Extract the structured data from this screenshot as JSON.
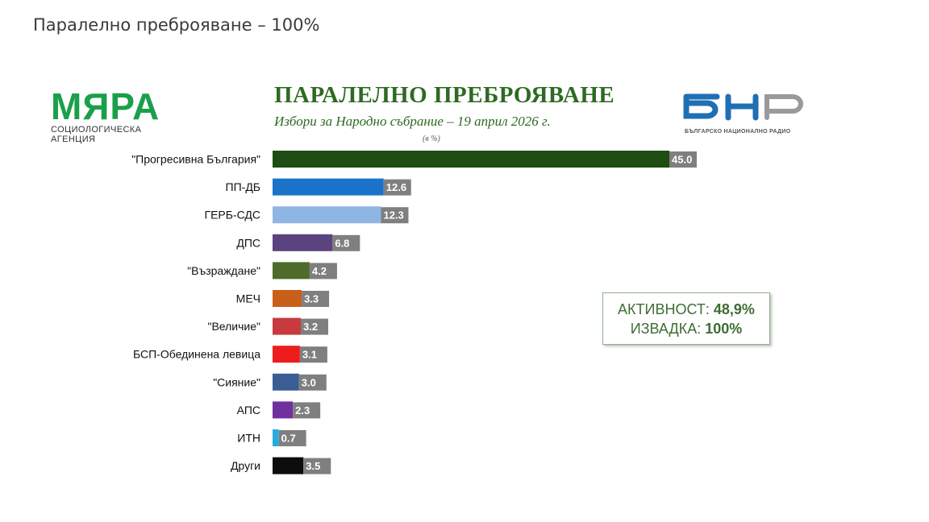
{
  "page": {
    "heading": "Паралелно преброяване – 100%"
  },
  "logos": {
    "left_mark": "МЯРА",
    "left_sub": "СОЦИОЛОГИЧЕСКА АГЕНЦИЯ",
    "right_mark": "БНР",
    "right_sub": "БЪЛГАРСКО НАЦИОНАЛНО РАДИО"
  },
  "info": {
    "turnout_label": "АКТИВНОСТ:",
    "turnout_value": "48,9%",
    "sample_label": "ИЗВАДКА:",
    "sample_value": "100%"
  },
  "chart_data": {
    "type": "bar",
    "orientation": "horizontal",
    "title": "ПАРАЛЕЛНО ПРЕБРОЯВАНЕ",
    "subtitle": "Избори за Народно събрание – 19 април 2026 г.",
    "unit": "(в %)",
    "categories": [
      "\"Прогресивна България\"",
      "ПП-ДБ",
      "ГЕРБ-СДС",
      "ДПС",
      "\"Възраждане\"",
      "МЕЧ",
      "\"Величие\"",
      "БСП-Обединена левица",
      "\"Сияние\"",
      "АПС",
      "ИТН",
      "Други"
    ],
    "values": [
      45.0,
      12.6,
      12.3,
      6.8,
      4.2,
      3.3,
      3.2,
      3.1,
      3.0,
      2.3,
      0.7,
      3.5
    ],
    "colors": [
      "#1d4d12",
      "#1a73c8",
      "#8fb5e3",
      "#5b4380",
      "#4e6b2a",
      "#c8601a",
      "#c93a3f",
      "#ef1c1c",
      "#3a5e94",
      "#7030a0",
      "#29abe2",
      "#0d0d0d"
    ],
    "label_bg": "#7f7f7f",
    "xlim": [
      0,
      45
    ]
  }
}
